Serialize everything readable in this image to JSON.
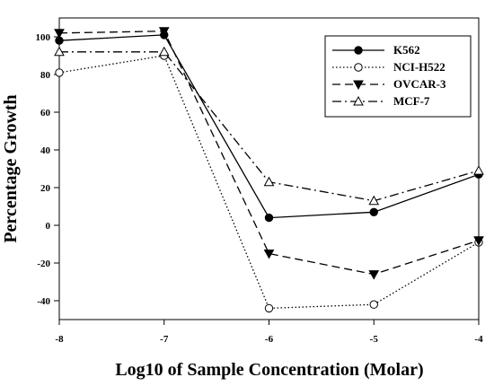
{
  "chart_data": {
    "type": "line",
    "title": "",
    "xlabel": "Log10 of Sample Concentration (Molar)",
    "ylabel": "Percentage  Growth",
    "xlim": [
      -8,
      -4
    ],
    "ylim": [
      -50,
      110
    ],
    "x": [
      -8,
      -7,
      -6,
      -5,
      -4
    ],
    "xticks": [
      -8,
      -7,
      -6,
      -5,
      -4
    ],
    "yticks": [
      -40,
      -20,
      0,
      20,
      40,
      60,
      80,
      100
    ],
    "xtick_labels": [
      "-8",
      "-7",
      "-6",
      "-5",
      "-4"
    ],
    "ytick_labels": [
      "-40",
      "-20",
      "0",
      "20",
      "40",
      "60",
      "80",
      "100"
    ],
    "grid": false,
    "legend_position": "top-right",
    "series": [
      {
        "name": "K562",
        "values": [
          98,
          101,
          4,
          7,
          27
        ],
        "line_style": "solid",
        "marker": "filled-circle"
      },
      {
        "name": "NCI-H522",
        "values": [
          81,
          90,
          -44,
          -42,
          -9
        ],
        "line_style": "dotted",
        "marker": "open-circle"
      },
      {
        "name": "OVCAR-3",
        "values": [
          102,
          103,
          -15,
          -26,
          -8
        ],
        "line_style": "dashed",
        "marker": "filled-triangle-down"
      },
      {
        "name": "MCF-7",
        "values": [
          92,
          92,
          23,
          13,
          29
        ],
        "line_style": "dash-dot",
        "marker": "open-triangle-up"
      }
    ]
  }
}
